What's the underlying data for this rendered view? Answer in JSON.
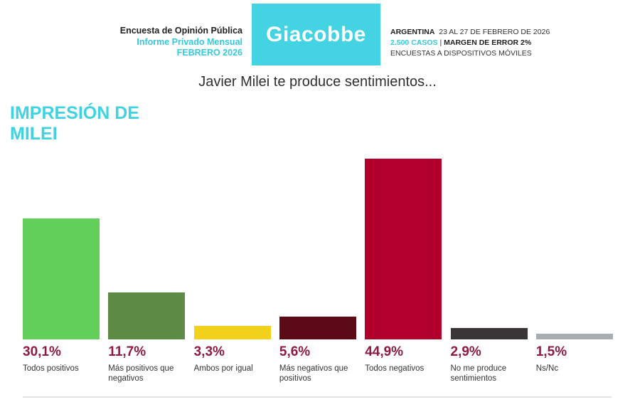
{
  "header": {
    "left": [
      "Encuesta de Opinión Pública",
      "Informe Privado Mensual",
      "FEBRERO 2026"
    ],
    "logo": "Giacobbe",
    "right": {
      "place": "ARGENTINA",
      "dates": "23 AL 27 DE FEBRERO DE 2026",
      "cases": "2.500 CASOS",
      "separator": "|",
      "margin": "MARGEN DE ERROR 2%",
      "method": "ENCUESTAS A DISPOSITIVOS MÓVILES"
    }
  },
  "chart_data": {
    "type": "bar",
    "title": "Javier Milei te produce sentimientos...",
    "subtitle": "IMPRESIÓN DE MILEI",
    "categories": [
      "Todos positivos",
      "Más positivos que negativos",
      "Ambos por igual",
      "Más negativos que positivos",
      "Todos negativos",
      "No me produce sentimientos",
      "Ns/Nc"
    ],
    "values": [
      30.1,
      11.7,
      3.3,
      5.6,
      44.9,
      2.9,
      1.5
    ],
    "value_labels": [
      "30,1%",
      "11,7%",
      "3,3%",
      "5,6%",
      "44,9%",
      "2,9%",
      "1,5%"
    ],
    "colors": [
      "#62cf5b",
      "#5d8b46",
      "#f1d11b",
      "#5d0a17",
      "#b1002b",
      "#3a3536",
      "#a9adaf"
    ]
  }
}
